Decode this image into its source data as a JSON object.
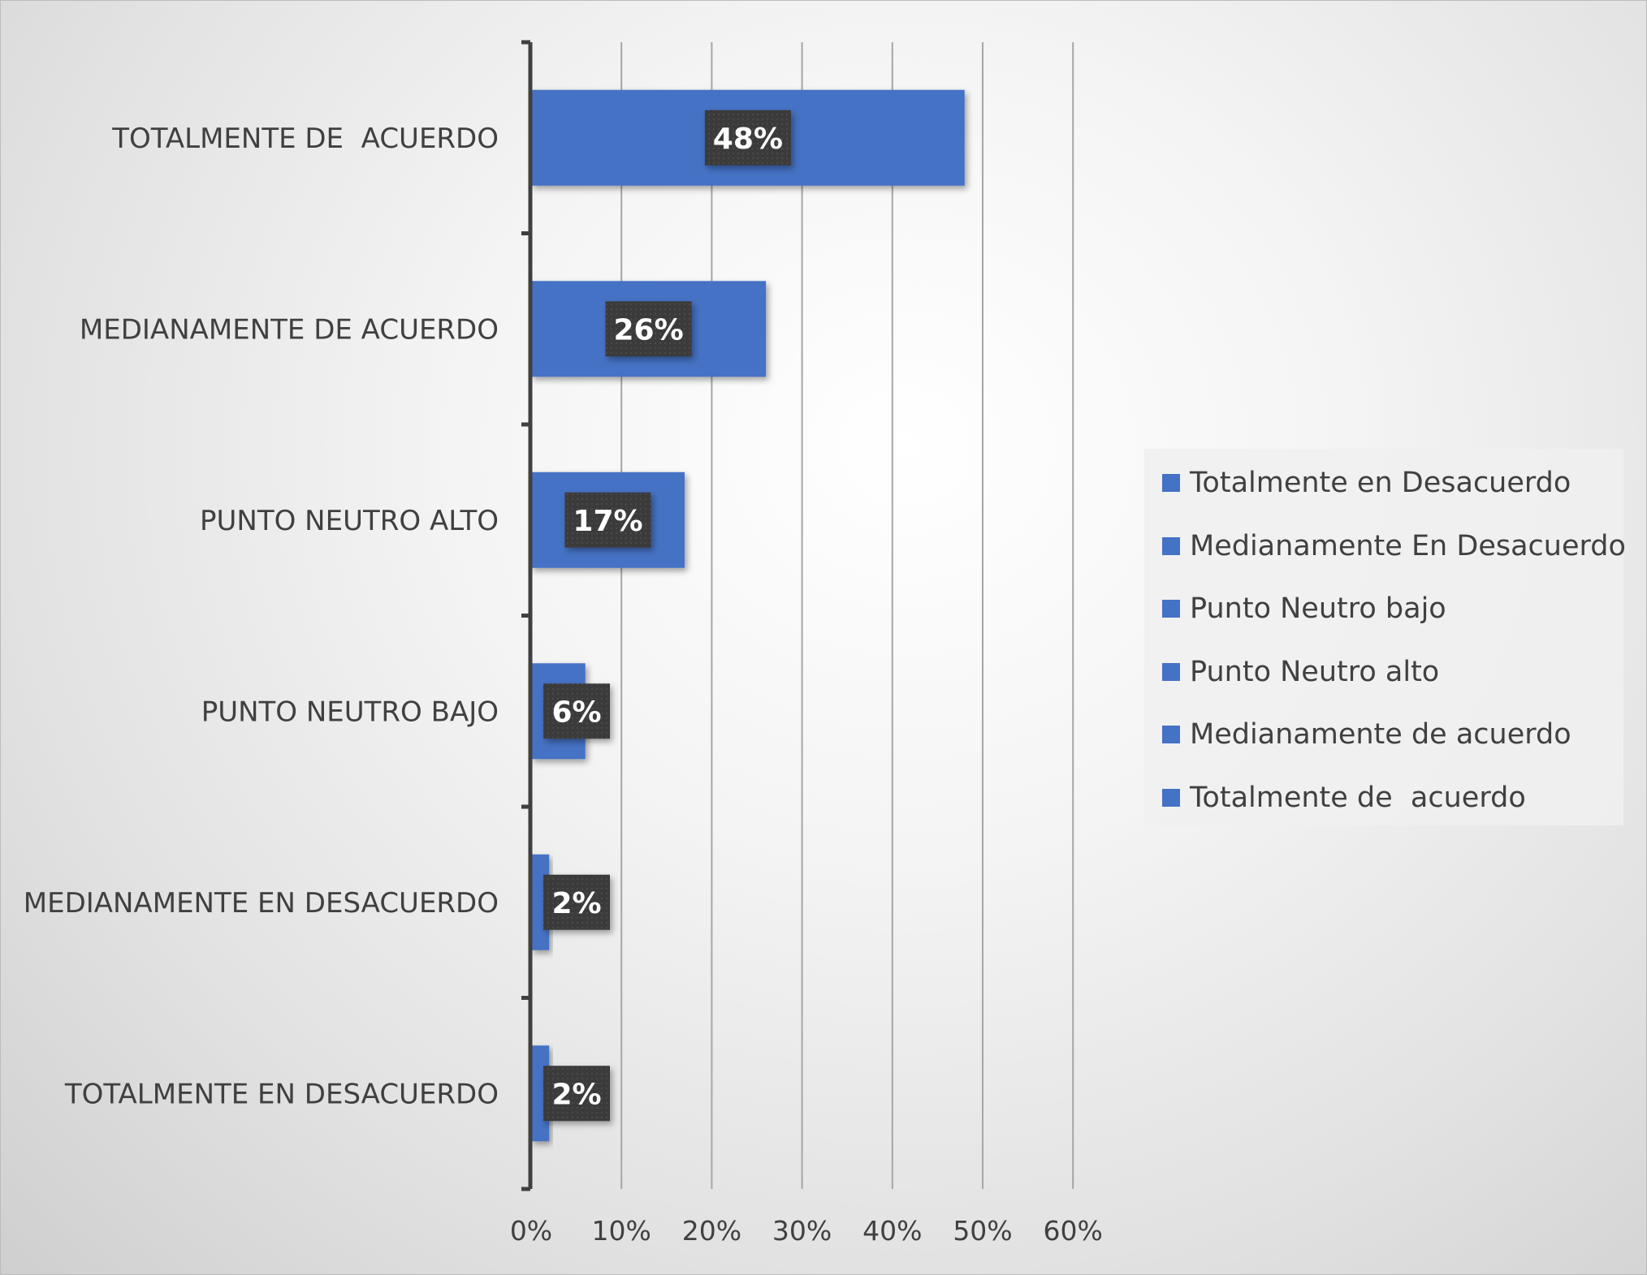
{
  "chart_data": {
    "type": "bar",
    "orientation": "horizontal",
    "categories": [
      "TOTALMENTE DE  ACUERDO",
      "MEDIANAMENTE DE ACUERDO",
      "PUNTO NEUTRO ALTO",
      "PUNTO NEUTRO BAJO",
      "MEDIANAMENTE EN DESACUERDO",
      "TOTALMENTE EN DESACUERDO"
    ],
    "values": [
      48,
      26,
      17,
      6,
      2,
      2
    ],
    "data_labels": [
      "48%",
      "26%",
      "17%",
      "6%",
      "2%",
      "2%"
    ],
    "xlim": [
      0,
      60
    ],
    "xticks": [
      "0%",
      "10%",
      "20%",
      "30%",
      "40%",
      "50%",
      "60%"
    ],
    "grid": "vertical",
    "legend": {
      "placement": "right",
      "entries": [
        "Totalmente en Desacuerdo",
        "Medianamente En Desacuerdo",
        "Punto Neutro bajo",
        "Punto Neutro alto",
        "Medianamente de acuerdo",
        "Totalmente de  acuerdo"
      ]
    },
    "bar_color": "#4472C4",
    "label_bg_color": "#3a3a3a",
    "title": "",
    "xlabel": "",
    "ylabel": ""
  }
}
